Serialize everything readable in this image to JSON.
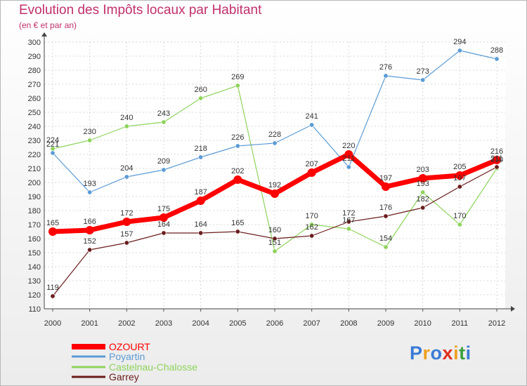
{
  "title": "Evolution des Impôts locaux par Habitant",
  "subtitle": "(en € et par an)",
  "logo": {
    "letters": [
      "P",
      "r",
      "o",
      "x",
      "i",
      "t",
      "i"
    ],
    "colors": [
      "#3a7bd5",
      "#f0a020",
      "#3a7bd5",
      "#e03020",
      "#f0a020",
      "#3aa040",
      "#3a7bd5"
    ]
  },
  "chart_data": {
    "type": "line",
    "x": [
      2000,
      2001,
      2002,
      2003,
      2004,
      2005,
      2006,
      2007,
      2008,
      2009,
      2010,
      2011,
      2012
    ],
    "ylim": [
      110,
      300
    ],
    "yticks": [
      110,
      120,
      130,
      140,
      150,
      160,
      170,
      180,
      190,
      200,
      210,
      220,
      230,
      240,
      250,
      260,
      270,
      280,
      290,
      300
    ],
    "grid": true,
    "legend_position": "bottom-left",
    "series": [
      {
        "name": "OZOURT",
        "color": "#ff0000",
        "values": [
          165,
          166,
          172,
          175,
          187,
          202,
          192,
          207,
          220,
          197,
          203,
          205,
          216
        ],
        "labels": [
          "165",
          "166",
          "172",
          "175",
          "187",
          "202",
          "192",
          "207",
          "220",
          "197",
          "203",
          "205",
          "216"
        ]
      },
      {
        "name": "Poyartin",
        "color": "#5b9bd5",
        "values": [
          221,
          193,
          204,
          209,
          218,
          226,
          228,
          241,
          211,
          276,
          273,
          294,
          288
        ],
        "labels": [
          "221",
          "193",
          "204",
          "209",
          "218",
          "226",
          "228",
          "241",
          "211",
          "276",
          "273",
          "294",
          "288"
        ]
      },
      {
        "name": "Castelnau-Chalosse",
        "color": "#8ed35c",
        "values": [
          224,
          230,
          240,
          243,
          260,
          269,
          151,
          170,
          167,
          154,
          193,
          170,
          210
        ],
        "labels": [
          "224",
          "230",
          "240",
          "243",
          "260",
          "269",
          "151",
          "170",
          "167",
          "154",
          "193",
          "170",
          "210"
        ]
      },
      {
        "name": "Garrey",
        "color": "#6b1c1c",
        "values": [
          119,
          152,
          157,
          164,
          164,
          165,
          160,
          162,
          172,
          176,
          182,
          197,
          211
        ],
        "labels": [
          "119",
          "152",
          "157",
          "164",
          "164",
          "165",
          "160",
          "162",
          "172",
          "176",
          "182",
          "197",
          "211"
        ]
      }
    ]
  }
}
